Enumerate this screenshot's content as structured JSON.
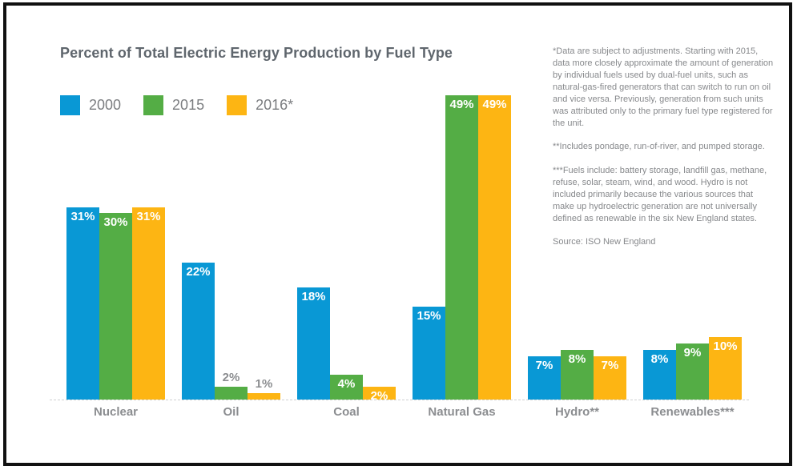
{
  "chart_data": {
    "type": "bar",
    "title": "Percent of Total Electric Energy Production by Fuel Type",
    "unit": "%",
    "categories": [
      "Nuclear",
      "Oil",
      "Coal",
      "Natural Gas",
      "Hydro**",
      "Renewables***"
    ],
    "series": [
      {
        "name": "2000",
        "color": "#0998d5",
        "values": [
          31,
          22,
          18,
          15,
          7,
          8
        ],
        "label_outside": [
          false,
          false,
          false,
          false,
          false,
          false
        ]
      },
      {
        "name": "2015",
        "color": "#54ad45",
        "values": [
          30,
          2,
          4,
          49,
          8,
          9
        ],
        "label_outside": [
          false,
          true,
          false,
          false,
          false,
          false
        ]
      },
      {
        "name": "2016*",
        "color": "#fdb513",
        "values": [
          31,
          1,
          2,
          49,
          7,
          10
        ],
        "label_outside": [
          false,
          true,
          false,
          false,
          false,
          false
        ]
      }
    ],
    "value_label_format": "percent",
    "ylim": [
      0,
      50
    ],
    "grid": false,
    "baseline_style": "dashed",
    "legend_position": "top-left",
    "xlabel": "",
    "ylabel": ""
  },
  "notes": [
    "*Data are subject to adjustments. Starting with 2015, data more closely approximate the amount of generation by individual fuels used by dual-fuel units, such as natural-gas-fired generators that can switch to run on oil and vice versa. Previously, generation from such units was attributed only to the primary fuel type registered for the unit.",
    "**Includes pondage, run-of-river, and pumped storage.",
    "***Fuels include: battery storage, landfill gas, methane, refuse, solar, steam, wind, and wood. Hydro is not included primarily because the various sources that make up hydroelectric generation are not universally defined as renewable in the six New England states.",
    "Source: ISO New England"
  ],
  "colors": {
    "title_text": "#5f666d",
    "legend_text": "#7b7d80",
    "category_text": "#8b8d90",
    "note_text": "#87898c",
    "bar_label_inside": "#ffffff",
    "bar_label_outside": "#8b8d90",
    "frame_border": "#111111"
  }
}
